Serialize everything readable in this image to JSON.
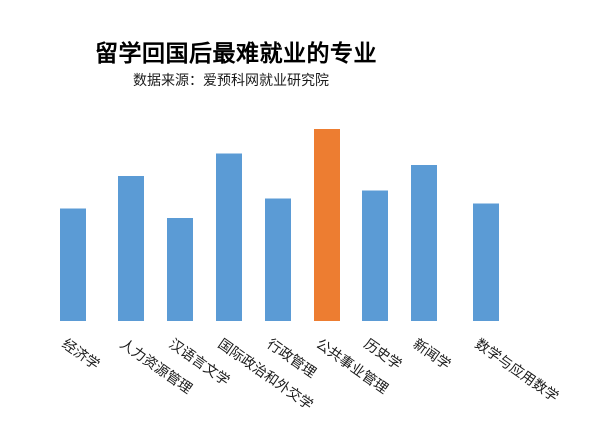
{
  "chart_data": {
    "type": "bar",
    "title": "留学回国后最难就业的专业",
    "subtitle": "数据来源：爱预科网就业研究院",
    "xlabel": "",
    "ylabel": "",
    "categories": [
      "经济学",
      "人力资源管理",
      "汉语言文学",
      "国际政治和外交学",
      "行政管理",
      "公共事业管理",
      "历史学",
      "新闻学",
      "数学与应用数学"
    ],
    "values": [
      115,
      148,
      105,
      171,
      125,
      196,
      133,
      159,
      120
    ],
    "ylim": [
      0,
      200
    ],
    "grid": false,
    "legend": "none",
    "colors": {
      "default": "#5b9bd5",
      "highlight": "#ed7d31"
    },
    "highlight_index": 5
  }
}
